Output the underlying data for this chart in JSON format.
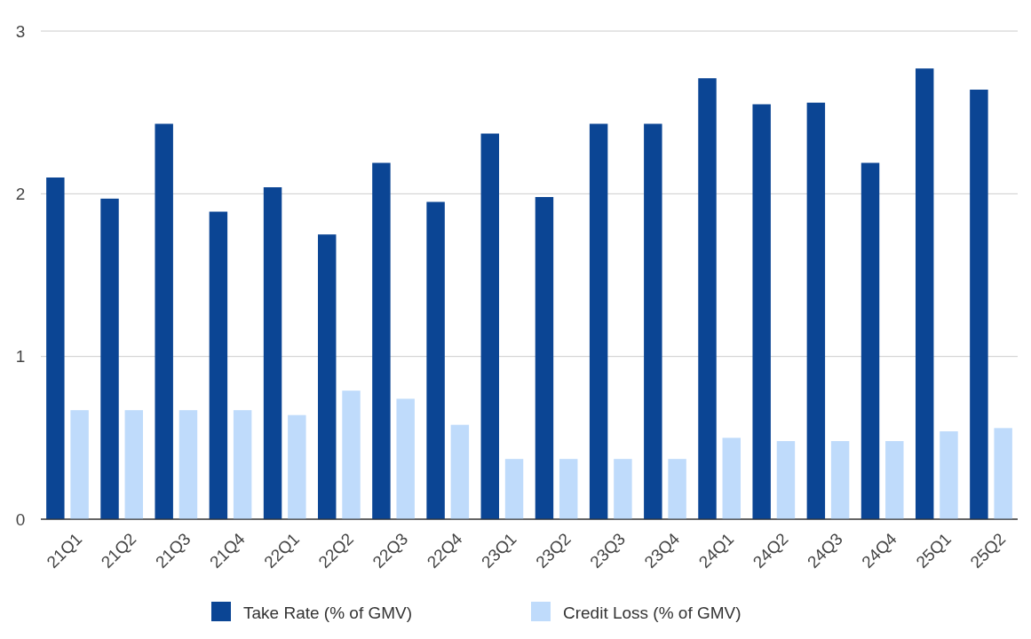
{
  "chart_data": {
    "type": "bar",
    "categories": [
      "21Q1",
      "21Q2",
      "21Q3",
      "21Q4",
      "22Q1",
      "22Q2",
      "22Q3",
      "22Q4",
      "23Q1",
      "23Q2",
      "23Q3",
      "23Q4",
      "24Q1",
      "24Q2",
      "24Q3",
      "24Q4",
      "25Q1",
      "25Q2"
    ],
    "series": [
      {
        "name": "Take Rate (% of GMV)",
        "color": "#0b4594",
        "values": [
          2.1,
          1.97,
          2.43,
          1.89,
          2.04,
          1.75,
          2.19,
          1.95,
          2.37,
          1.98,
          2.43,
          2.43,
          2.71,
          2.55,
          2.56,
          2.19,
          2.77,
          2.64
        ]
      },
      {
        "name": "Credit Loss (% of GMV)",
        "color": "#bfdbfb",
        "values": [
          0.67,
          0.67,
          0.67,
          0.67,
          0.64,
          0.79,
          0.74,
          0.58,
          0.37,
          0.37,
          0.37,
          0.37,
          0.5,
          0.48,
          0.48,
          0.48,
          0.54,
          0.56
        ]
      }
    ],
    "ylim": [
      0,
      3
    ],
    "yticks": [
      0,
      1,
      2,
      3
    ],
    "grid": "y",
    "legend": "bottom"
  }
}
